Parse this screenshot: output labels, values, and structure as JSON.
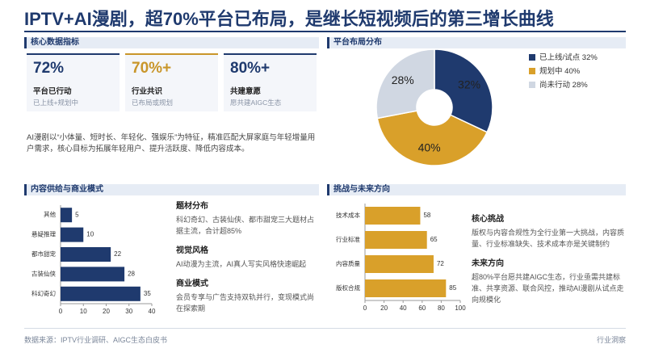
{
  "header": {
    "title": "IPTV+AI漫剧，超70%平台已布局，是继长短视频后的第三增长曲线"
  },
  "sections": {
    "kpi": "核心数据指标",
    "pie": "平台布局分布",
    "content": "内容供给与商业模式",
    "challenge": "挑战与未来方向"
  },
  "kpis": [
    {
      "value": "72%",
      "label": "平台已行动",
      "sub": "已上线+规划中",
      "color": "#1f3a6e"
    },
    {
      "value": "70%+",
      "label": "行业共识",
      "sub": "已布局或规划",
      "color": "#c9962a"
    },
    {
      "value": "80%+",
      "label": "共建意愿",
      "sub": "愿共建AIGC生态",
      "color": "#1f3a6e"
    }
  ],
  "summary": "AI漫剧以“小体量、短时长、年轻化、强娱乐”为特征，精准匹配大屏家庭与年轻增量用户需求，核心目标为拓展年轻用户、提升活跃度、降低内容成本。",
  "content_notes": [
    {
      "heading": "题材分布",
      "text": "科幻奇幻、古装仙侠、都市甜宠三大题材占据主流，合计超85%"
    },
    {
      "heading": "视觉风格",
      "text": "AI动漫为主流，AI真人写实风格快速崛起"
    },
    {
      "heading": "商业模式",
      "text": "会员专享与广告支持双轨并行，变现模式尚在探索期"
    }
  ],
  "challenge_notes": [
    {
      "heading": "核心挑战",
      "text": "版权与内容合规性为全行业第一大挑战，内容质量、行业标准缺失、技术成本亦是关键制约"
    },
    {
      "heading": "未来方向",
      "text": "超80%平台愿共建AIGC生态，行业亟需共建标准、共享资源、联合风控，推动AI漫剧从试点走向规模化"
    }
  ],
  "footer": {
    "source": "数据来源：IPTV行业调研、AIGC生态白皮书",
    "brand": "行业洞察"
  },
  "chart_data": [
    {
      "type": "pie",
      "categories": [
        "已上线/试点",
        "规划中",
        "尚未行动"
      ],
      "values": [
        32,
        40,
        28
      ],
      "value_labels": [
        "32%",
        "40%",
        "28%"
      ],
      "colors": [
        "#1f3a6e",
        "#d9a02a",
        "#d0d7e2"
      ],
      "legend": "right"
    },
    {
      "type": "bar",
      "orientation": "horizontal",
      "categories": [
        "其他",
        "悬疑推理",
        "都市甜宠",
        "古装仙侠",
        "科幻奇幻"
      ],
      "values": [
        5,
        10,
        22,
        28,
        35
      ],
      "color": "#1f3a6e",
      "xlim": [
        0,
        40
      ],
      "xticks": [
        0,
        10,
        20,
        30,
        40
      ]
    },
    {
      "type": "bar",
      "orientation": "horizontal",
      "categories": [
        "技术成本",
        "行业标准",
        "内容质量",
        "版权合规"
      ],
      "values": [
        58,
        65,
        72,
        85
      ],
      "color": "#d9a02a",
      "xlim": [
        0,
        100
      ],
      "xticks": [
        0,
        20,
        40,
        60,
        80,
        100
      ]
    }
  ]
}
